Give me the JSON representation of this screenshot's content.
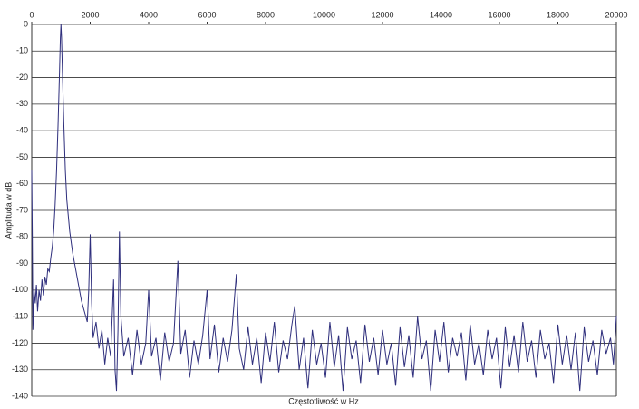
{
  "chart_data": {
    "type": "line",
    "xlabel": "Częstotliwość w Hz",
    "ylabel": "Amplituda w dB",
    "color": "#2e2e7c",
    "xlim": [
      0,
      20000
    ],
    "xticks": [
      0,
      2000,
      4000,
      6000,
      8000,
      10000,
      12000,
      14000,
      16000,
      18000,
      20000
    ],
    "ylim": [
      -140,
      0
    ],
    "yticks": [
      0,
      -10,
      -20,
      -30,
      -40,
      -50,
      -60,
      -70,
      -80,
      -90,
      -100,
      -110,
      -120,
      -130,
      -140
    ],
    "grid": true,
    "x": [
      0,
      20,
      40,
      80,
      120,
      160,
      200,
      250,
      300,
      350,
      400,
      450,
      500,
      550,
      600,
      650,
      700,
      750,
      800,
      850,
      900,
      950,
      980,
      1000,
      1020,
      1050,
      1100,
      1150,
      1200,
      1300,
      1400,
      1500,
      1600,
      1700,
      1800,
      1900,
      1950,
      2000,
      2050,
      2100,
      2200,
      2300,
      2400,
      2500,
      2600,
      2700,
      2800,
      2850,
      2900,
      2950,
      3000,
      3050,
      3150,
      3300,
      3450,
      3600,
      3750,
      3900,
      4000,
      4100,
      4250,
      4400,
      4550,
      4700,
      4850,
      5000,
      5100,
      5250,
      5400,
      5550,
      5700,
      5850,
      6000,
      6100,
      6250,
      6400,
      6550,
      6700,
      6850,
      7000,
      7100,
      7250,
      7400,
      7550,
      7700,
      7850,
      8000,
      8150,
      8300,
      8450,
      8600,
      8750,
      8900,
      9000,
      9150,
      9300,
      9450,
      9600,
      9750,
      9900,
      10050,
      10200,
      10350,
      10500,
      10650,
      10800,
      10950,
      11100,
      11250,
      11400,
      11550,
      11700,
      11850,
      12000,
      12150,
      12300,
      12450,
      12600,
      12750,
      12900,
      13050,
      13200,
      13350,
      13500,
      13650,
      13800,
      13950,
      14100,
      14250,
      14400,
      14550,
      14700,
      14850,
      15000,
      15150,
      15300,
      15450,
      15600,
      15750,
      15900,
      16050,
      16200,
      16350,
      16500,
      16650,
      16800,
      16950,
      17100,
      17250,
      17400,
      17550,
      17700,
      17850,
      18000,
      18150,
      18300,
      18450,
      18600,
      18750,
      18900,
      19050,
      19200,
      19350,
      19500,
      19650,
      19800,
      19900,
      20000
    ],
    "values": [
      -55,
      -80,
      -115,
      -100,
      -105,
      -98,
      -108,
      -100,
      -104,
      -96,
      -102,
      -95,
      -98,
      -92,
      -93,
      -88,
      -84,
      -78,
      -68,
      -55,
      -38,
      -18,
      -5,
      0,
      -5,
      -18,
      -38,
      -55,
      -66,
      -78,
      -86,
      -92,
      -98,
      -104,
      -108,
      -112,
      -100,
      -79,
      -105,
      -118,
      -112,
      -122,
      -115,
      -128,
      -118,
      -125,
      -96,
      -130,
      -138,
      -115,
      -78,
      -110,
      -125,
      -118,
      -132,
      -115,
      -128,
      -120,
      -100,
      -125,
      -118,
      -134,
      -116,
      -127,
      -120,
      -89,
      -124,
      -115,
      -133,
      -119,
      -128,
      -117,
      -100,
      -126,
      -113,
      -131,
      -118,
      -127,
      -115,
      -94,
      -122,
      -130,
      -114,
      -128,
      -118,
      -135,
      -116,
      -127,
      -112,
      -131,
      -119,
      -126,
      -113,
      -106,
      -130,
      -118,
      -137,
      -115,
      -128,
      -120,
      -133,
      -112,
      -129,
      -117,
      -138,
      -114,
      -126,
      -119,
      -135,
      -113,
      -127,
      -118,
      -132,
      -115,
      -128,
      -120,
      -136,
      -114,
      -129,
      -117,
      -133,
      -110,
      -126,
      -119,
      -138,
      -115,
      -127,
      -112,
      -131,
      -118,
      -125,
      -116,
      -134,
      -113,
      -128,
      -120,
      -132,
      -115,
      -126,
      -118,
      -137,
      -114,
      -129,
      -117,
      -131,
      -112,
      -127,
      -119,
      -133,
      -115,
      -126,
      -120,
      -135,
      -113,
      -128,
      -117,
      -130,
      -116,
      -138,
      -114,
      -127,
      -119,
      -132,
      -115,
      -124,
      -118,
      -128,
      -110
    ]
  }
}
